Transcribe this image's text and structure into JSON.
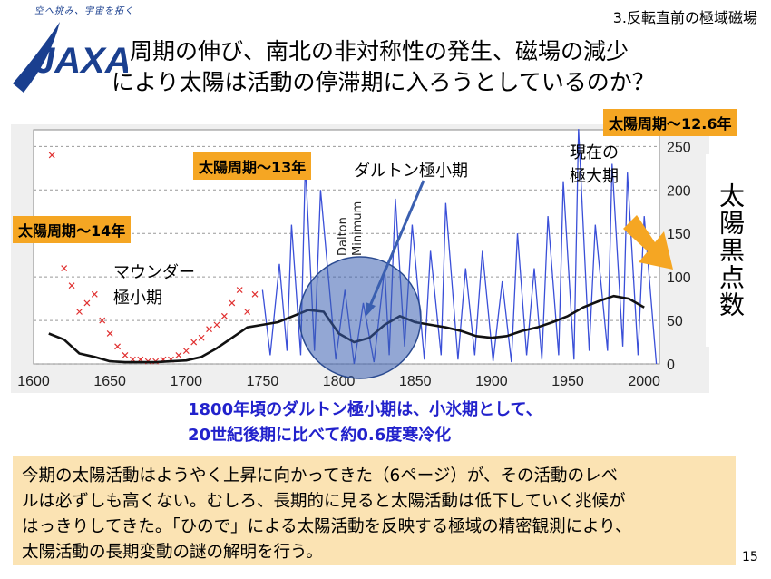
{
  "header": {
    "logo_tagline": "空へ挑み、宇宙を拓く",
    "logo_text": "JAXA",
    "slide_tag": "3.反転直前の極域磁場",
    "headline_line1": "周期の伸び、南北の非対称性の発生、磁場の減少",
    "headline_line2": "により太陽は活動の停滞期に入ろうとしているのか？"
  },
  "labels": {
    "cycle_126": "太陽周期～12.6年",
    "cycle_13": "太陽周期～13年",
    "cycle_14": "太陽周期～14年",
    "dalton_jp": "ダルトン極小期",
    "maunder_line1": "マウンダー",
    "maunder_line2": "極小期",
    "current_line1": "現在の",
    "current_line2": "極大期",
    "dalton_en_line1": "Dalton",
    "dalton_en_line2": "Minimum",
    "vaxis": "太陽黒点数"
  },
  "chart_data": {
    "type": "line",
    "x_ticks": [
      "1600",
      "1650",
      "1700",
      "1750",
      "1800",
      "1850",
      "1900",
      "1950",
      "2000"
    ],
    "y_ticks": [
      "0",
      "50",
      "100",
      "150",
      "200",
      "250"
    ],
    "xlim": [
      1600,
      2010
    ],
    "ylim": [
      0,
      265
    ],
    "grid": true,
    "series": [
      {
        "kind": "trend",
        "x": [
          1610,
          1620,
          1630,
          1640,
          1650,
          1660,
          1670,
          1680,
          1690,
          1700,
          1710,
          1720,
          1730,
          1740,
          1750,
          1760,
          1770,
          1780,
          1790,
          1800,
          1810,
          1820,
          1830,
          1840,
          1850,
          1860,
          1870,
          1880,
          1890,
          1900,
          1910,
          1920,
          1930,
          1940,
          1950,
          1960,
          1970,
          1980,
          1990,
          2000
        ],
        "values": [
          35,
          28,
          12,
          8,
          3,
          2,
          2,
          2,
          3,
          4,
          8,
          18,
          30,
          42,
          45,
          48,
          55,
          62,
          60,
          35,
          25,
          30,
          45,
          55,
          48,
          45,
          42,
          38,
          32,
          30,
          32,
          38,
          42,
          48,
          55,
          65,
          72,
          78,
          75,
          65
        ]
      },
      {
        "kind": "telescopic",
        "x": [
          1750,
          1755,
          1761,
          1766,
          1769,
          1775,
          1778,
          1784,
          1788,
          1798,
          1804,
          1810,
          1816,
          1823,
          1830,
          1833,
          1837,
          1843,
          1848,
          1856,
          1860,
          1867,
          1870,
          1878,
          1883,
          1889,
          1894,
          1901,
          1907,
          1913,
          1917,
          1923,
          1928,
          1933,
          1937,
          1944,
          1947,
          1954,
          1957,
          1964,
          1968,
          1976,
          1979,
          1986,
          1989,
          1996,
          2000,
          2008
        ],
        "values": [
          85,
          10,
          115,
          15,
          160,
          10,
          230,
          15,
          200,
          5,
          85,
          0,
          70,
          2,
          110,
          10,
          190,
          20,
          160,
          5,
          130,
          10,
          185,
          5,
          110,
          10,
          130,
          3,
          95,
          2,
          150,
          10,
          110,
          5,
          170,
          10,
          210,
          5,
          270,
          15,
          160,
          15,
          230,
          20,
          220,
          10,
          170,
          0
        ]
      },
      {
        "kind": "pre-telescopic",
        "x": [
          1612,
          1615,
          1620,
          1625,
          1630,
          1635,
          1640,
          1645,
          1650,
          1655,
          1660,
          1665,
          1670,
          1675,
          1680,
          1685,
          1690,
          1695,
          1700,
          1705,
          1710,
          1715,
          1720,
          1725,
          1730,
          1735,
          1740,
          1745
        ],
        "values": [
          240,
          150,
          110,
          90,
          60,
          70,
          80,
          50,
          35,
          20,
          10,
          5,
          5,
          3,
          3,
          5,
          5,
          10,
          15,
          25,
          30,
          40,
          45,
          55,
          70,
          85,
          60,
          80
        ]
      }
    ]
  },
  "caption": {
    "line1": "1800年頃のダルトン極小期は、小氷期として、",
    "line2": "20世紀後期に比べて約0.6度寒冷化"
  },
  "summary": {
    "line1": "今期の太陽活動はようやく上昇に向かってきた（6ページ）が、その活動のレベ",
    "line2": "ルは必ずしも高くない。むしろ、長期的に見ると太陽活動は低下していく兆候が",
    "line3": "はっきりしてきた。「ひので」による太陽活動を反映する極域の精密観測により、",
    "line4": "太陽活動の長期変動の謎の解明を行う。"
  },
  "page_number": "15",
  "colors": {
    "accent_orange": "#f5a623",
    "telescopic_blue": "#3a4fd8",
    "pre_telescopic_red": "#e03030",
    "caption_blue": "#2222cc",
    "summary_bg": "#fbe3b3"
  }
}
